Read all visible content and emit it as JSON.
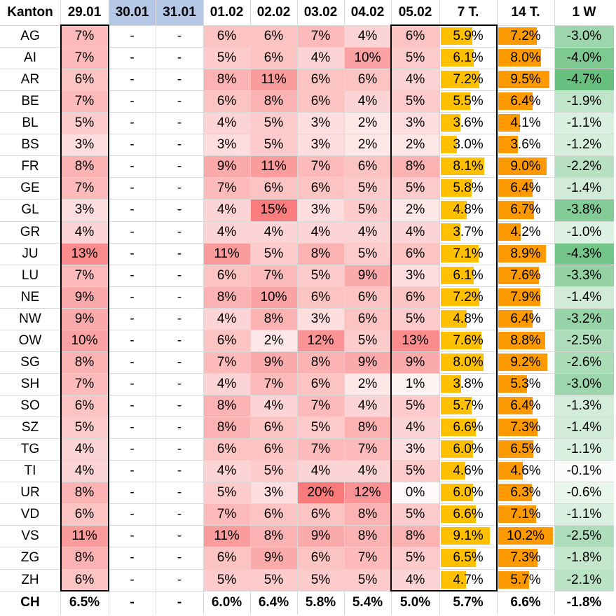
{
  "columns": [
    "Kanton",
    "29.01",
    "30.01",
    "31.01",
    "01.02",
    "02.02",
    "03.02",
    "04.02",
    "05.02",
    "7 T.",
    "14 T.",
    "1 W"
  ],
  "colors": {
    "header_blue": "#b4c7e7",
    "red_max": "#f8696b",
    "bar_7t": "#ffc000",
    "bar_14t": "#ff9900",
    "green_max": "#63be7b",
    "border": "#000000",
    "grid": "#d9d9d9"
  },
  "rows": [
    {
      "canton": "AG",
      "d2901": "7%",
      "d3001": "-",
      "d3101": "-",
      "d0102": "6%",
      "d0202": "6%",
      "d0302": "7%",
      "d0402": "4%",
      "d0502": "6%",
      "t7": "5.9%",
      "t14": "7.2%",
      "w1": "-3.0%"
    },
    {
      "canton": "AI",
      "d2901": "7%",
      "d3001": "-",
      "d3101": "-",
      "d0102": "5%",
      "d0202": "6%",
      "d0302": "4%",
      "d0402": "10%",
      "d0502": "5%",
      "t7": "6.1%",
      "t14": "8.0%",
      "w1": "-4.0%"
    },
    {
      "canton": "AR",
      "d2901": "6%",
      "d3001": "-",
      "d3101": "-",
      "d0102": "8%",
      "d0202": "11%",
      "d0302": "6%",
      "d0402": "6%",
      "d0502": "4%",
      "t7": "7.2%",
      "t14": "9.5%",
      "w1": "-4.7%"
    },
    {
      "canton": "BE",
      "d2901": "7%",
      "d3001": "-",
      "d3101": "-",
      "d0102": "6%",
      "d0202": "8%",
      "d0302": "6%",
      "d0402": "4%",
      "d0502": "5%",
      "t7": "5.5%",
      "t14": "6.4%",
      "w1": "-1.9%"
    },
    {
      "canton": "BL",
      "d2901": "5%",
      "d3001": "-",
      "d3101": "-",
      "d0102": "4%",
      "d0202": "5%",
      "d0302": "3%",
      "d0402": "2%",
      "d0502": "3%",
      "t7": "3.6%",
      "t14": "4.1%",
      "w1": "-1.1%"
    },
    {
      "canton": "BS",
      "d2901": "3%",
      "d3001": "-",
      "d3101": "-",
      "d0102": "3%",
      "d0202": "5%",
      "d0302": "3%",
      "d0402": "2%",
      "d0502": "2%",
      "t7": "3.0%",
      "t14": "3.6%",
      "w1": "-1.2%"
    },
    {
      "canton": "FR",
      "d2901": "8%",
      "d3001": "-",
      "d3101": "-",
      "d0102": "9%",
      "d0202": "11%",
      "d0302": "7%",
      "d0402": "6%",
      "d0502": "8%",
      "t7": "8.1%",
      "t14": "9.0%",
      "w1": "-2.2%"
    },
    {
      "canton": "GE",
      "d2901": "7%",
      "d3001": "-",
      "d3101": "-",
      "d0102": "7%",
      "d0202": "6%",
      "d0302": "6%",
      "d0402": "5%",
      "d0502": "5%",
      "t7": "5.8%",
      "t14": "6.4%",
      "w1": "-1.4%"
    },
    {
      "canton": "GL",
      "d2901": "3%",
      "d3001": "-",
      "d3101": "-",
      "d0102": "4%",
      "d0202": "15%",
      "d0302": "3%",
      "d0402": "5%",
      "d0502": "2%",
      "t7": "4.8%",
      "t14": "6.7%",
      "w1": "-3.8%"
    },
    {
      "canton": "GR",
      "d2901": "4%",
      "d3001": "-",
      "d3101": "-",
      "d0102": "4%",
      "d0202": "4%",
      "d0302": "4%",
      "d0402": "4%",
      "d0502": "4%",
      "t7": "3.7%",
      "t14": "4.2%",
      "w1": "-1.0%"
    },
    {
      "canton": "JU",
      "d2901": "13%",
      "d3001": "-",
      "d3101": "-",
      "d0102": "11%",
      "d0202": "5%",
      "d0302": "8%",
      "d0402": "5%",
      "d0502": "6%",
      "t7": "7.1%",
      "t14": "8.9%",
      "w1": "-4.3%"
    },
    {
      "canton": "LU",
      "d2901": "7%",
      "d3001": "-",
      "d3101": "-",
      "d0102": "6%",
      "d0202": "7%",
      "d0302": "5%",
      "d0402": "9%",
      "d0502": "3%",
      "t7": "6.1%",
      "t14": "7.6%",
      "w1": "-3.3%"
    },
    {
      "canton": "NE",
      "d2901": "9%",
      "d3001": "-",
      "d3101": "-",
      "d0102": "8%",
      "d0202": "10%",
      "d0302": "6%",
      "d0402": "6%",
      "d0502": "6%",
      "t7": "7.2%",
      "t14": "7.9%",
      "w1": "-1.4%"
    },
    {
      "canton": "NW",
      "d2901": "9%",
      "d3001": "-",
      "d3101": "-",
      "d0102": "4%",
      "d0202": "8%",
      "d0302": "3%",
      "d0402": "6%",
      "d0502": "5%",
      "t7": "4.8%",
      "t14": "6.4%",
      "w1": "-3.2%"
    },
    {
      "canton": "OW",
      "d2901": "10%",
      "d3001": "-",
      "d3101": "-",
      "d0102": "6%",
      "d0202": "2%",
      "d0302": "12%",
      "d0402": "5%",
      "d0502": "13%",
      "t7": "7.6%",
      "t14": "8.8%",
      "w1": "-2.5%"
    },
    {
      "canton": "SG",
      "d2901": "8%",
      "d3001": "-",
      "d3101": "-",
      "d0102": "7%",
      "d0202": "9%",
      "d0302": "8%",
      "d0402": "9%",
      "d0502": "9%",
      "t7": "8.0%",
      "t14": "9.2%",
      "w1": "-2.6%"
    },
    {
      "canton": "SH",
      "d2901": "7%",
      "d3001": "-",
      "d3101": "-",
      "d0102": "4%",
      "d0202": "7%",
      "d0302": "6%",
      "d0402": "2%",
      "d0502": "1%",
      "t7": "3.8%",
      "t14": "5.3%",
      "w1": "-3.0%"
    },
    {
      "canton": "SO",
      "d2901": "6%",
      "d3001": "-",
      "d3101": "-",
      "d0102": "8%",
      "d0202": "4%",
      "d0302": "7%",
      "d0402": "4%",
      "d0502": "5%",
      "t7": "5.7%",
      "t14": "6.4%",
      "w1": "-1.3%"
    },
    {
      "canton": "SZ",
      "d2901": "5%",
      "d3001": "-",
      "d3101": "-",
      "d0102": "8%",
      "d0202": "6%",
      "d0302": "5%",
      "d0402": "8%",
      "d0502": "4%",
      "t7": "6.6%",
      "t14": "7.3%",
      "w1": "-1.4%"
    },
    {
      "canton": "TG",
      "d2901": "4%",
      "d3001": "-",
      "d3101": "-",
      "d0102": "6%",
      "d0202": "6%",
      "d0302": "7%",
      "d0402": "7%",
      "d0502": "3%",
      "t7": "6.0%",
      "t14": "6.5%",
      "w1": "-1.1%"
    },
    {
      "canton": "TI",
      "d2901": "4%",
      "d3001": "-",
      "d3101": "-",
      "d0102": "4%",
      "d0202": "5%",
      "d0302": "4%",
      "d0402": "4%",
      "d0502": "5%",
      "t7": "4.6%",
      "t14": "4.6%",
      "w1": "-0.1%"
    },
    {
      "canton": "UR",
      "d2901": "8%",
      "d3001": "-",
      "d3101": "-",
      "d0102": "5%",
      "d0202": "3%",
      "d0302": "20%",
      "d0402": "12%",
      "d0502": "0%",
      "t7": "6.0%",
      "t14": "6.3%",
      "w1": "-0.6%"
    },
    {
      "canton": "VD",
      "d2901": "6%",
      "d3001": "-",
      "d3101": "-",
      "d0102": "7%",
      "d0202": "6%",
      "d0302": "6%",
      "d0402": "8%",
      "d0502": "5%",
      "t7": "6.6%",
      "t14": "7.1%",
      "w1": "-1.1%"
    },
    {
      "canton": "VS",
      "d2901": "11%",
      "d3001": "-",
      "d3101": "-",
      "d0102": "11%",
      "d0202": "8%",
      "d0302": "9%",
      "d0402": "8%",
      "d0502": "8%",
      "t7": "9.1%",
      "t14": "10.2%",
      "w1": "-2.5%"
    },
    {
      "canton": "ZG",
      "d2901": "8%",
      "d3001": "-",
      "d3101": "-",
      "d0102": "6%",
      "d0202": "9%",
      "d0302": "6%",
      "d0402": "7%",
      "d0502": "5%",
      "t7": "6.5%",
      "t14": "7.3%",
      "w1": "-1.8%"
    },
    {
      "canton": "ZH",
      "d2901": "6%",
      "d3001": "-",
      "d3101": "-",
      "d0102": "5%",
      "d0202": "5%",
      "d0302": "5%",
      "d0402": "5%",
      "d0502": "4%",
      "t7": "4.7%",
      "t14": "5.7%",
      "w1": "-2.1%"
    }
  ],
  "total": {
    "canton": "CH",
    "d2901": "6.5%",
    "d3001": "-",
    "d3101": "-",
    "d0102": "6.0%",
    "d0202": "6.4%",
    "d0302": "5.8%",
    "d0402": "5.4%",
    "d0502": "5.0%",
    "t7": "5.7%",
    "t14": "6.6%",
    "w1": "-1.8%"
  }
}
